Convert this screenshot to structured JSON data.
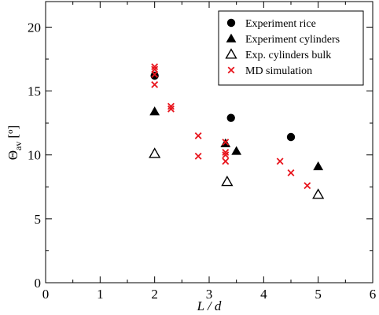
{
  "chart_data": {
    "type": "scatter",
    "xlabel": "L / d",
    "ylabel": {
      "main": "Θ",
      "sub": "av",
      "unit": "[",
      "sup": "o",
      "unit_close": "]"
    },
    "xlim": [
      0,
      6
    ],
    "ylim": [
      0,
      22
    ],
    "xticks": [
      0,
      1,
      2,
      3,
      4,
      5,
      6
    ],
    "yticks": [
      0,
      5,
      10,
      15,
      20
    ],
    "grid": false,
    "legend_position": "top-right",
    "series": [
      {
        "name": "Experiment rice",
        "marker": "filled-circle",
        "color": "#000000",
        "x": [
          2.0,
          3.4,
          4.5
        ],
        "y": [
          16.2,
          12.9,
          11.4
        ]
      },
      {
        "name": "Experiment cylinders",
        "marker": "filled-triangle",
        "color": "#000000",
        "x": [
          2.0,
          3.3,
          3.5,
          5.0
        ],
        "y": [
          13.4,
          10.9,
          10.3,
          9.1
        ]
      },
      {
        "name": "Exp. cylinders bulk",
        "marker": "open-triangle",
        "color": "#000000",
        "x": [
          2.0,
          3.33,
          5.0
        ],
        "y": [
          10.1,
          7.9,
          6.9
        ]
      },
      {
        "name": "MD simulation",
        "marker": "cross",
        "color": "#e8141c",
        "x": [
          2.0,
          2.0,
          2.0,
          2.0,
          2.3,
          2.3,
          2.8,
          2.8,
          3.3,
          3.3,
          3.3,
          3.3,
          4.3,
          4.5,
          4.8
        ],
        "y": [
          16.9,
          16.7,
          16.3,
          15.5,
          13.8,
          13.6,
          11.5,
          9.9,
          11.0,
          10.2,
          10.0,
          9.5,
          9.5,
          8.6,
          7.6
        ]
      }
    ]
  }
}
